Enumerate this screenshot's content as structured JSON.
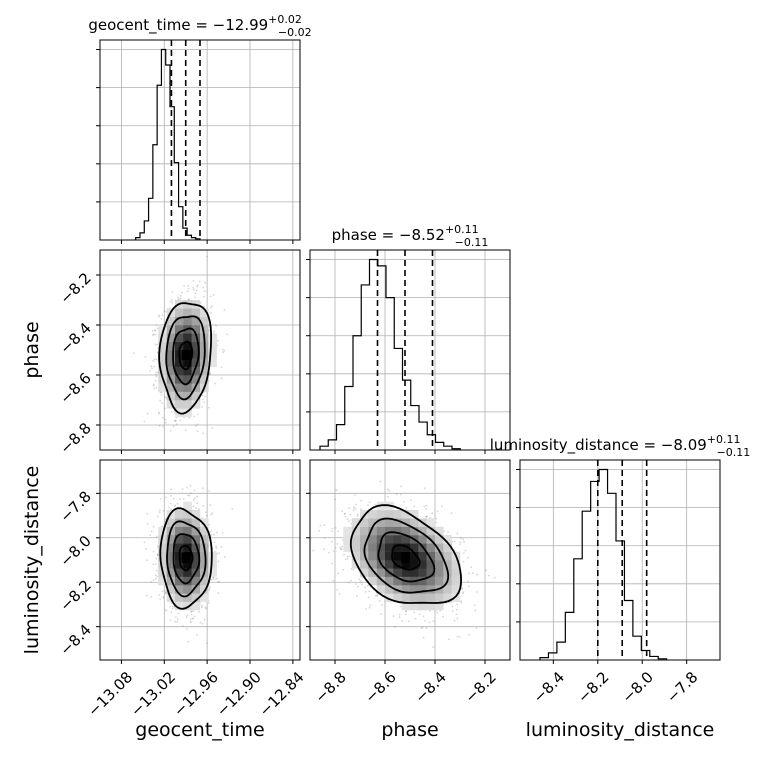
{
  "chart_data": {
    "type": "corner",
    "parameters": [
      {
        "name": "geocent_time",
        "xlabel": "geocent_time",
        "ylabel": "",
        "title_main": "geocent_time = −12.99",
        "title_plus": "+0.02",
        "title_minus": "−0.02",
        "range": [
          -13.11,
          -12.83
        ],
        "ticks": [
          -13.08,
          -13.02,
          -12.96,
          -12.9,
          -12.84
        ],
        "tick_labels": [
          "−13.08",
          "−13.02",
          "−12.96",
          "−12.90",
          "−12.84"
        ],
        "median": -12.99,
        "quantiles": [
          -13.01,
          -12.99,
          -12.97
        ],
        "hist_edges_start": -13.06,
        "hist_bin_width": 0.006,
        "hist_counts": [
          2,
          6,
          16,
          35,
          80,
          130,
          160,
          147,
          112,
          65,
          28,
          10,
          4,
          2,
          1
        ],
        "std": 0.018
      },
      {
        "name": "phase",
        "xlabel": "phase",
        "ylabel": "phase",
        "title_main": "phase = −8.52",
        "title_plus": "+0.11",
        "title_minus": "−0.11",
        "range": [
          -8.9,
          -8.1
        ],
        "ticks": [
          -8.8,
          -8.6,
          -8.4,
          -8.2
        ],
        "tick_labels": [
          "−8.8",
          "−8.6",
          "−8.4",
          "−8.2"
        ],
        "median": -8.52,
        "quantiles": [
          -8.63,
          -8.52,
          -8.41
        ],
        "hist_edges_start": -8.86,
        "hist_bin_width": 0.033,
        "hist_counts": [
          3,
          8,
          20,
          50,
          90,
          130,
          150,
          145,
          120,
          80,
          55,
          35,
          22,
          12,
          6,
          3,
          1
        ],
        "std": 0.11
      },
      {
        "name": "luminosity_distance",
        "xlabel": "luminosity_distance",
        "ylabel": "luminosity_distance",
        "title_main": "luminosity_distance = −8.09",
        "title_plus": "+0.11",
        "title_minus": "−0.11",
        "range": [
          -8.55,
          -7.65
        ],
        "ticks": [
          -8.4,
          -8.2,
          -8.0,
          -7.8
        ],
        "tick_labels": [
          "−8.4",
          "−8.2",
          "−8.0",
          "−7.8"
        ],
        "median": -8.09,
        "quantiles": [
          -8.2,
          -8.09,
          -7.98
        ],
        "hist_edges_start": -8.46,
        "hist_bin_width": 0.038,
        "hist_counts": [
          2,
          6,
          15,
          40,
          85,
          125,
          150,
          160,
          140,
          100,
          50,
          20,
          8,
          3,
          1
        ],
        "std": 0.11
      }
    ],
    "correlations": [
      {
        "x": 0,
        "y": 1,
        "rho": 0.1
      },
      {
        "x": 0,
        "y": 2,
        "rho": -0.05
      },
      {
        "x": 1,
        "y": 2,
        "rho": -0.35
      }
    ],
    "grid": true,
    "contour_levels": [
      "0.5σ",
      "1σ",
      "1.5σ",
      "2σ"
    ],
    "colors": {
      "line": "#000000",
      "grid": "#b0b0b0",
      "scatter": "#8a8a8a"
    }
  }
}
